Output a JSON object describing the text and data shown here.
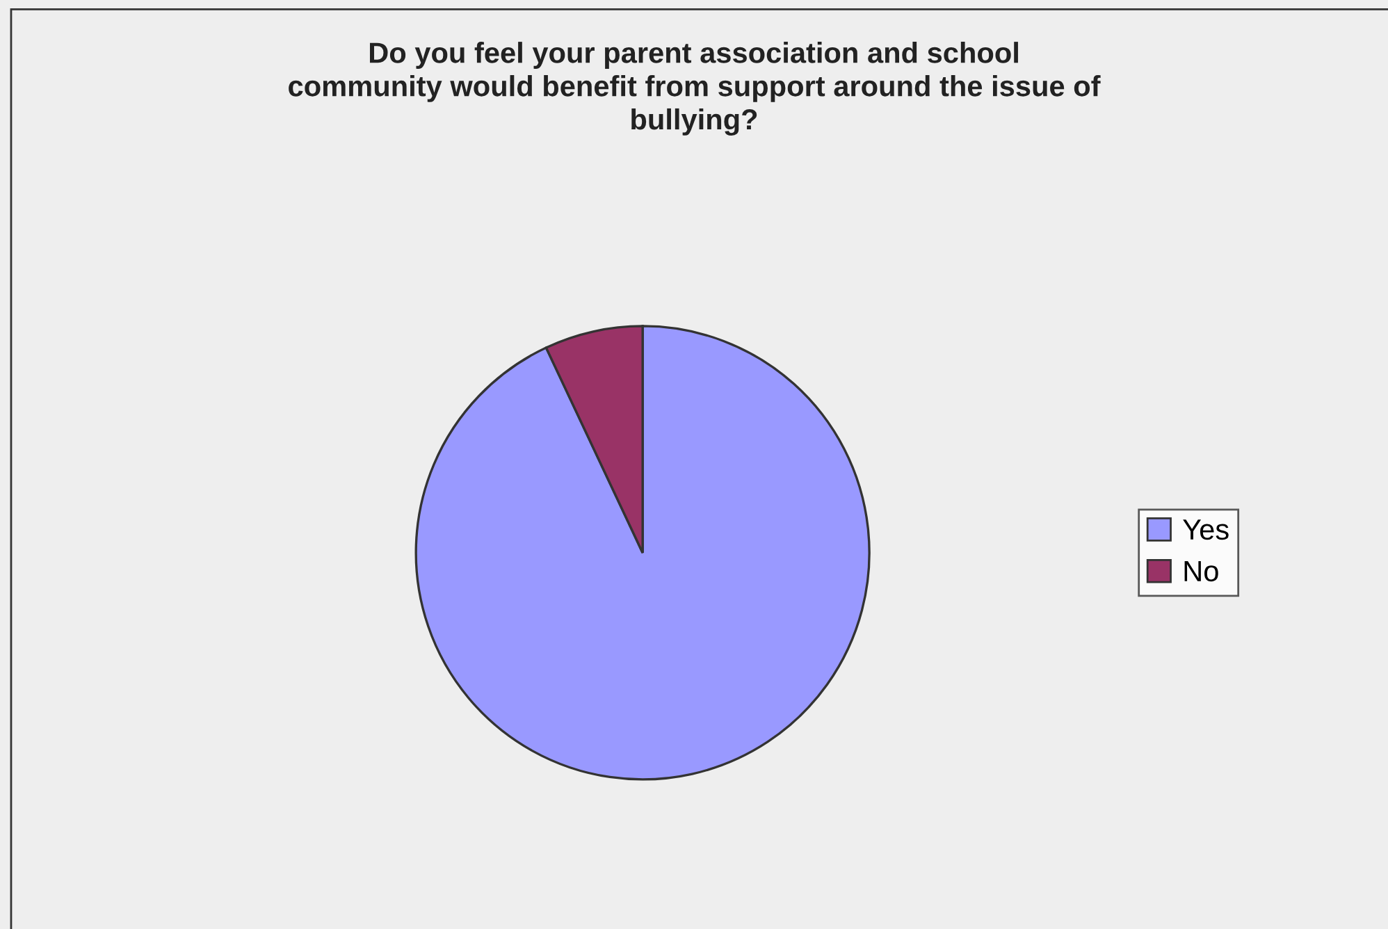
{
  "chart_data": {
    "type": "pie",
    "title": "Do you feel your parent association and school\ncommunity would benefit from support around the issue of\nbullying?",
    "categories": [
      "Yes",
      "No"
    ],
    "values": [
      93,
      7
    ],
    "colors": [
      "#9999ff",
      "#993366"
    ],
    "legend": "right"
  }
}
